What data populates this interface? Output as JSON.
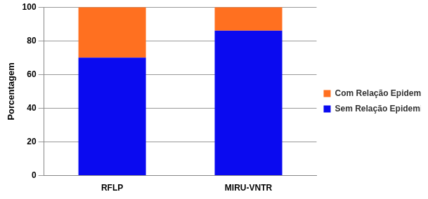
{
  "chart_data": {
    "type": "bar",
    "stacked": true,
    "y_label": "Porcentagem",
    "categories": [
      "RFLP",
      "MIRU-VNTR"
    ],
    "series": [
      {
        "name": "Sem Relação Epidemiológica",
        "color": "#0a0af0",
        "values": [
          70,
          86
        ]
      },
      {
        "name": "Com Relação Epidemiológica",
        "color": "#ff7020",
        "values": [
          30,
          14
        ]
      }
    ],
    "ylim": [
      0,
      100
    ],
    "yticks": [
      0,
      20,
      40,
      60,
      80,
      100
    ],
    "grid": true,
    "legend": "right"
  }
}
